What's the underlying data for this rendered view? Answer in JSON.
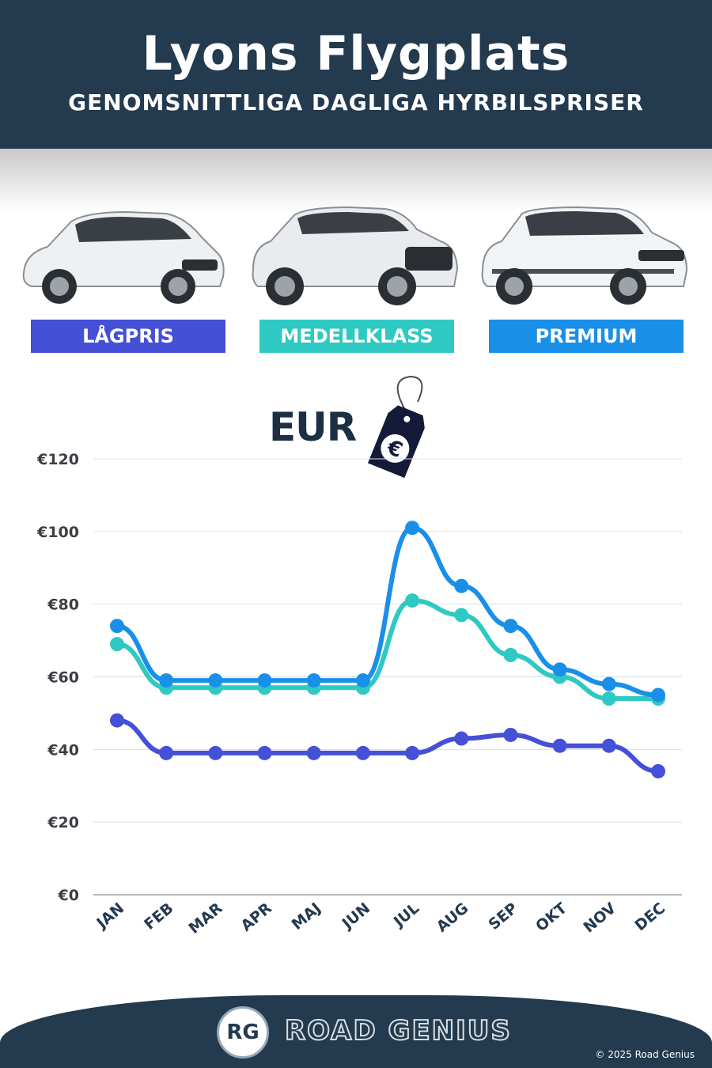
{
  "header": {
    "title": "Lyons Flygplats",
    "subtitle": "GENOMSNITTLIGA DAGLIGA HYRBILSPRISER"
  },
  "categories": [
    {
      "label": "LÅGPRIS",
      "color": "#4450d6"
    },
    {
      "label": "MEDELLKLASS",
      "color": "#2ec9c2"
    },
    {
      "label": "PREMIUM",
      "color": "#1a8fe8"
    }
  ],
  "currency": {
    "unit": "EUR",
    "tag_symbol": "€"
  },
  "chart_data": {
    "type": "line",
    "categories": [
      "JAN",
      "FEB",
      "MAR",
      "APR",
      "MAJ",
      "JUN",
      "JUL",
      "AUG",
      "SEP",
      "OKT",
      "NOV",
      "DEC"
    ],
    "series": [
      {
        "name": "LÅGPRIS",
        "color": "#4450d6",
        "values": [
          48,
          39,
          39,
          39,
          39,
          39,
          39,
          43,
          44,
          41,
          41,
          34
        ]
      },
      {
        "name": "MEDELLKLASS",
        "color": "#2ec9c2",
        "values": [
          69,
          57,
          57,
          57,
          57,
          57,
          81,
          77,
          66,
          60,
          54,
          54
        ]
      },
      {
        "name": "PREMIUM",
        "color": "#1a8fe8",
        "values": [
          74,
          59,
          59,
          59,
          59,
          59,
          101,
          85,
          74,
          62,
          58,
          55
        ]
      }
    ],
    "yticks": [
      "€0",
      "€20",
      "€40",
      "€60",
      "€80",
      "€100",
      "€120"
    ],
    "ylim": [
      0,
      120
    ],
    "grid": true
  },
  "footer": {
    "logo_initials": "RG",
    "brand": "ROAD GENIUS",
    "copyright": "© 2025 Road Genius"
  }
}
